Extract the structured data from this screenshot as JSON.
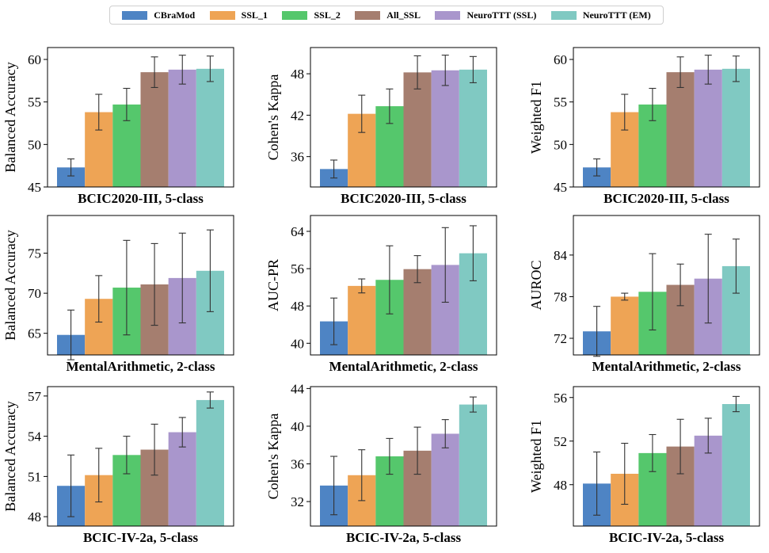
{
  "colors": {
    "CBraMod": "#4e84c4",
    "SSL_1": "#eea455",
    "SSL_2": "#55c76c",
    "All_SSL": "#a57e6f",
    "NeuroTTT (SSL)": "#a996cc",
    "NeuroTTT (EM)": "#80c9c2"
  },
  "legend": {
    "items": [
      "CBraMod",
      "SSL_1",
      "SSL_2",
      "All_SSL",
      "NeuroTTT (SSL)",
      "NeuroTTT (EM)"
    ]
  },
  "chart_data": [
    {
      "type": "bar",
      "title": "BCIC2020-III, 5-class",
      "ylabel": "Balanced Accuracy",
      "categories": [
        "CBraMod",
        "SSL_1",
        "SSL_2",
        "All_SSL",
        "NeuroTTT (SSL)",
        "NeuroTTT (EM)"
      ],
      "values": [
        47.3,
        53.8,
        54.7,
        58.5,
        58.8,
        58.9
      ],
      "errors": [
        1.0,
        2.1,
        1.9,
        1.8,
        1.7,
        1.5
      ],
      "ylim": [
        45,
        61.4
      ],
      "yticks": [
        45,
        50,
        55,
        60
      ],
      "grid": false
    },
    {
      "type": "bar",
      "title": "BCIC2020-III, 5-class",
      "ylabel": "Cohen's Kappa",
      "categories": [
        "CBraMod",
        "SSL_1",
        "SSL_2",
        "All_SSL",
        "NeuroTTT (SSL)",
        "NeuroTTT (EM)"
      ],
      "values": [
        34.2,
        42.2,
        43.3,
        48.2,
        48.5,
        48.6
      ],
      "errors": [
        1.3,
        2.7,
        2.5,
        2.4,
        2.2,
        1.9
      ],
      "ylim": [
        31.6,
        51.8
      ],
      "yticks": [
        36,
        42,
        48
      ],
      "grid": false
    },
    {
      "type": "bar",
      "title": "BCIC2020-III, 5-class",
      "ylabel": "Weighted F1",
      "categories": [
        "CBraMod",
        "SSL_1",
        "SSL_2",
        "All_SSL",
        "NeuroTTT (SSL)",
        "NeuroTTT (EM)"
      ],
      "values": [
        47.3,
        53.8,
        54.7,
        58.5,
        58.8,
        58.9
      ],
      "errors": [
        1.0,
        2.1,
        1.9,
        1.8,
        1.7,
        1.5
      ],
      "ylim": [
        45,
        61.4
      ],
      "yticks": [
        45,
        50,
        55,
        60
      ],
      "grid": false
    },
    {
      "type": "bar",
      "title": "MentalArithmetic, 2-class",
      "ylabel": "Balanced Accuracy",
      "categories": [
        "CBraMod",
        "SSL_1",
        "SSL_2",
        "All_SSL",
        "NeuroTTT (SSL)",
        "NeuroTTT (EM)"
      ],
      "values": [
        64.8,
        69.3,
        70.7,
        71.1,
        71.9,
        72.8
      ],
      "errors": [
        3.1,
        2.9,
        5.9,
        5.1,
        5.6,
        5.1
      ],
      "ylim": [
        62.3,
        79.7
      ],
      "yticks": [
        65,
        70,
        75
      ],
      "grid": false
    },
    {
      "type": "bar",
      "title": "MentalArithmetic, 2-class",
      "ylabel": "AUC-PR",
      "categories": [
        "CBraMod",
        "SSL_1",
        "SSL_2",
        "All_SSL",
        "NeuroTTT (SSL)",
        "NeuroTTT (EM)"
      ],
      "values": [
        44.7,
        52.3,
        53.6,
        55.9,
        56.8,
        59.3
      ],
      "errors": [
        5.0,
        1.5,
        7.3,
        2.9,
        8.0,
        5.9
      ],
      "ylim": [
        37.5,
        67.4
      ],
      "yticks": [
        40,
        48,
        56,
        64
      ],
      "grid": false
    },
    {
      "type": "bar",
      "title": "MentalArithmetic, 2-class",
      "ylabel": "AUROC",
      "categories": [
        "CBraMod",
        "SSL_1",
        "SSL_2",
        "All_SSL",
        "NeuroTTT (SSL)",
        "NeuroTTT (EM)"
      ],
      "values": [
        73.0,
        78.0,
        78.7,
        79.7,
        80.6,
        82.4
      ],
      "errors": [
        3.6,
        0.5,
        5.5,
        3.0,
        6.4,
        3.9
      ],
      "ylim": [
        69.6,
        89.7
      ],
      "yticks": [
        72,
        78,
        84
      ],
      "grid": false
    },
    {
      "type": "bar",
      "title": "BCIC-IV-2a, 5-class",
      "ylabel": "Balanced Accuracy",
      "categories": [
        "CBraMod",
        "SSL_1",
        "SSL_2",
        "All_SSL",
        "NeuroTTT (SSL)",
        "NeuroTTT (EM)"
      ],
      "values": [
        50.3,
        51.1,
        52.6,
        53.0,
        54.3,
        56.7
      ],
      "errors": [
        2.3,
        2.0,
        1.4,
        1.9,
        1.1,
        0.6
      ],
      "ylim": [
        47.3,
        57.7
      ],
      "yticks": [
        48,
        51,
        54,
        57
      ],
      "grid": false
    },
    {
      "type": "bar",
      "title": "BCIC-IV-2a, 5-class",
      "ylabel": "Cohen's Kappa",
      "categories": [
        "CBraMod",
        "SSL_1",
        "SSL_2",
        "All_SSL",
        "NeuroTTT (SSL)",
        "NeuroTTT (EM)"
      ],
      "values": [
        33.7,
        34.8,
        36.8,
        37.4,
        39.2,
        42.3
      ],
      "errors": [
        3.1,
        2.7,
        1.9,
        2.5,
        1.5,
        0.8
      ],
      "ylim": [
        29.4,
        44.2
      ],
      "yticks": [
        32,
        36,
        40,
        44
      ],
      "grid": false
    },
    {
      "type": "bar",
      "title": "BCIC-IV-2a, 5-class",
      "ylabel": "Weighted F1",
      "categories": [
        "CBraMod",
        "SSL_1",
        "SSL_2",
        "All_SSL",
        "NeuroTTT (SSL)",
        "NeuroTTT (EM)"
      ],
      "values": [
        48.1,
        49.0,
        50.9,
        51.5,
        52.5,
        55.4
      ],
      "errors": [
        2.9,
        2.8,
        1.7,
        2.5,
        1.6,
        0.7
      ],
      "ylim": [
        44.2,
        57.0
      ],
      "yticks": [
        48,
        52,
        56
      ],
      "grid": false
    }
  ]
}
